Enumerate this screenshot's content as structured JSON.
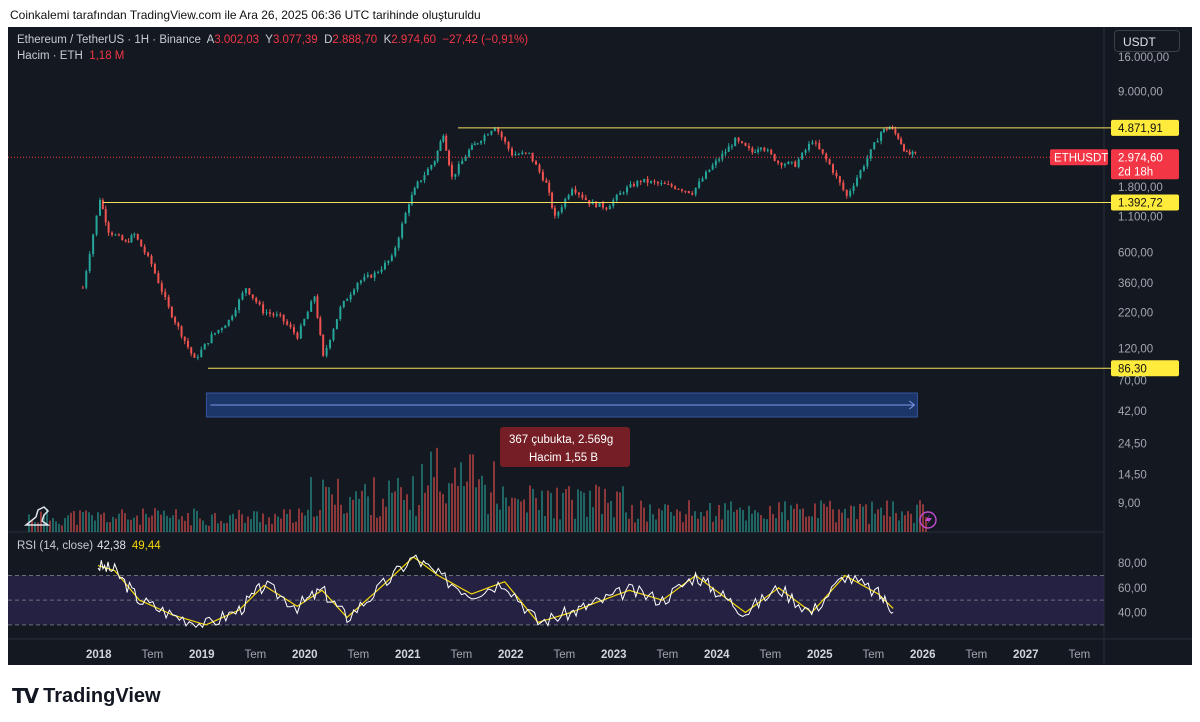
{
  "caption": "Coinkalemi tarafından TradingView.com ile Ara 26, 2025 06:36 UTC tarihinde oluşturuldu",
  "legend": {
    "symbol": "Ethereum / TetherUS · 1H · Binance",
    "o_label": "A",
    "o_value": "3.002,03",
    "h_label": "Y",
    "h_value": "3.077,39",
    "l_label": "D",
    "l_value": "2.888,70",
    "c_label": "K",
    "c_value": "2.974,60",
    "change": "−27,42 (−0,91%)",
    "volume_label": "Hacim · ETH",
    "volume_value": "1,18 M"
  },
  "currency_button": "USDT",
  "rsi_legend": {
    "label": "RSI (14, close)",
    "value1": "42,38",
    "value2": "49,44"
  },
  "footer": {
    "wordmark": "TradingView"
  },
  "colors": {
    "up": "#26a69a",
    "down": "#ef5350",
    "level": "#f5e15c",
    "rsi": "#ffffff",
    "rsi_ma": "#f5d90a",
    "range": "#1e3a73"
  },
  "chart_data": {
    "type": "candlestick",
    "pair": "ETHUSDT",
    "scale": "log",
    "y_ticks": [
      "16.000,00",
      "9.000,00",
      "4.871,91",
      "2.974,60",
      "1.800,00",
      "1.392,72",
      "1.100,00",
      "600,00",
      "360,00",
      "220,00",
      "120,00",
      "86,30",
      "70,00",
      "42,00",
      "24,50",
      "14,50",
      "9,00"
    ],
    "y_tick_values": [
      16000,
      9000,
      4871.91,
      2974.6,
      1800,
      1392.72,
      1100,
      600,
      360,
      220,
      120,
      86.3,
      70,
      42,
      24.5,
      14.5,
      9
    ],
    "x_ticks": [
      "2018",
      "Tem",
      "2019",
      "Tem",
      "2020",
      "Tem",
      "2021",
      "Tem",
      "2022",
      "Tem",
      "2023",
      "Tem",
      "2024",
      "Tem",
      "2025",
      "Tem",
      "2026",
      "Tem",
      "2027",
      "Tem"
    ],
    "x_tick_dates": [
      "2018-01",
      "2018-07",
      "2019-01",
      "2019-07",
      "2020-01",
      "2020-07",
      "2021-01",
      "2021-07",
      "2022-01",
      "2022-07",
      "2023-01",
      "2023-07",
      "2024-01",
      "2024-07",
      "2025-01",
      "2025-07",
      "2026-01",
      "2026-07",
      "2027-01",
      "2027-07"
    ],
    "price_path": [
      [
        "2017-11",
        300
      ],
      [
        "2018-01",
        1392.72
      ],
      [
        "2018-02",
        800
      ],
      [
        "2018-04",
        650
      ],
      [
        "2018-05",
        750
      ],
      [
        "2018-07",
        450
      ],
      [
        "2018-09",
        210
      ],
      [
        "2018-12",
        86.3
      ],
      [
        "2019-02",
        130
      ],
      [
        "2019-04",
        170
      ],
      [
        "2019-06",
        300
      ],
      [
        "2019-08",
        200
      ],
      [
        "2019-10",
        180
      ],
      [
        "2019-12",
        130
      ],
      [
        "2020-02",
        260
      ],
      [
        "2020-03",
        90
      ],
      [
        "2020-05",
        210
      ],
      [
        "2020-07",
        330
      ],
      [
        "2020-09",
        380
      ],
      [
        "2020-11",
        500
      ],
      [
        "2021-01",
        1300
      ],
      [
        "2021-02",
        1800
      ],
      [
        "2021-04",
        2700
      ],
      [
        "2021-05",
        4300
      ],
      [
        "2021-06",
        2000
      ],
      [
        "2021-08",
        3200
      ],
      [
        "2021-09",
        3700
      ],
      [
        "2021-11",
        4871.91
      ],
      [
        "2022-01",
        3000
      ],
      [
        "2022-03",
        3000
      ],
      [
        "2022-05",
        1800
      ],
      [
        "2022-06",
        1000
      ],
      [
        "2022-08",
        1700
      ],
      [
        "2022-10",
        1300
      ],
      [
        "2022-12",
        1200
      ],
      [
        "2023-02",
        1600
      ],
      [
        "2023-04",
        1900
      ],
      [
        "2023-06",
        1800
      ],
      [
        "2023-08",
        1700
      ],
      [
        "2023-10",
        1550
      ],
      [
        "2023-12",
        2300
      ],
      [
        "2024-03",
        3800
      ],
      [
        "2024-05",
        3100
      ],
      [
        "2024-06",
        3500
      ],
      [
        "2024-08",
        2600
      ],
      [
        "2024-10",
        2500
      ],
      [
        "2024-12",
        3800
      ],
      [
        "2025-02",
        2500
      ],
      [
        "2025-04",
        1450
      ],
      [
        "2025-06",
        2500
      ],
      [
        "2025-08",
        4400
      ],
      [
        "2025-09",
        4800
      ],
      [
        "2025-10",
        4000
      ],
      [
        "2025-11",
        3000
      ],
      [
        "2025-12",
        2974.6
      ]
    ],
    "horizontal_levels": [
      4871.91,
      1392.72,
      86.3
    ],
    "current_price": {
      "label": "ETHUSDT",
      "value": "2.974,60",
      "countdown": "2d 18h"
    },
    "date_range": {
      "start": "2018-12",
      "end": "2025-12",
      "bars": "367 çubukta, 2.569g",
      "volume": "Hacim 1,55 B"
    },
    "rsi": {
      "ticks": [
        "80,00",
        "60,00",
        "40,00"
      ],
      "tick_values": [
        80,
        60,
        40
      ],
      "band": [
        30,
        70
      ],
      "values": [
        [
          0.0,
          78
        ],
        [
          0.02,
          74
        ],
        [
          0.05,
          50
        ],
        [
          0.09,
          38
        ],
        [
          0.13,
          30
        ],
        [
          0.17,
          42
        ],
        [
          0.2,
          62
        ],
        [
          0.24,
          45
        ],
        [
          0.27,
          58
        ],
        [
          0.3,
          36
        ],
        [
          0.34,
          60
        ],
        [
          0.38,
          85
        ],
        [
          0.41,
          70
        ],
        [
          0.45,
          55
        ],
        [
          0.49,
          65
        ],
        [
          0.53,
          32
        ],
        [
          0.57,
          40
        ],
        [
          0.6,
          48
        ],
        [
          0.64,
          58
        ],
        [
          0.68,
          50
        ],
        [
          0.72,
          70
        ],
        [
          0.75,
          55
        ],
        [
          0.78,
          40
        ],
        [
          0.82,
          60
        ],
        [
          0.86,
          40
        ],
        [
          0.9,
          70
        ],
        [
          0.94,
          55
        ],
        [
          0.96,
          42
        ]
      ]
    }
  }
}
